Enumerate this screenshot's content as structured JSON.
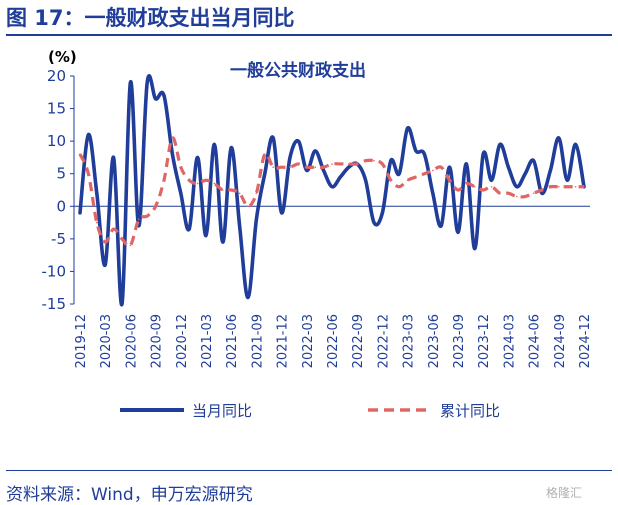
{
  "figure_title": "图 17：一般财政支出当月同比",
  "source": "资料来源：Wind，申万宏源研究",
  "watermark": "格隆汇",
  "colors": {
    "title": "#1f3d99",
    "monthly": "#1f3d99",
    "cumulative": "#e06666"
  },
  "chart_data": {
    "type": "line",
    "title": "一般公共财政支出",
    "ylabel": "(%)",
    "xlabel": "",
    "ylim": [
      -15,
      20
    ],
    "yticks": [
      -15,
      -10,
      -5,
      0,
      5,
      10,
      15,
      20
    ],
    "x_tick_labels": [
      "2019-12",
      "2020-03",
      "2020-06",
      "2020-09",
      "2020-12",
      "2021-03",
      "2021-06",
      "2021-09",
      "2021-12",
      "2022-03",
      "2022-06",
      "2022-09",
      "2022-12",
      "2023-03",
      "2023-06",
      "2023-09",
      "2023-12",
      "2024-03",
      "2024-06",
      "2024-09",
      "2024-12"
    ],
    "x": [
      "2019-12",
      "2020-01",
      "2020-02",
      "2020-03",
      "2020-04",
      "2020-05",
      "2020-06",
      "2020-07",
      "2020-08",
      "2020-09",
      "2020-10",
      "2020-11",
      "2020-12",
      "2021-01",
      "2021-02",
      "2021-03",
      "2021-04",
      "2021-05",
      "2021-06",
      "2021-07",
      "2021-08",
      "2021-09",
      "2021-10",
      "2021-11",
      "2021-12",
      "2022-01",
      "2022-02",
      "2022-03",
      "2022-04",
      "2022-05",
      "2022-06",
      "2022-07",
      "2022-08",
      "2022-09",
      "2022-10",
      "2022-11",
      "2022-12",
      "2023-01",
      "2023-02",
      "2023-03",
      "2023-04",
      "2023-05",
      "2023-06",
      "2023-07",
      "2023-08",
      "2023-09",
      "2023-10",
      "2023-11",
      "2023-12",
      "2024-01",
      "2024-02",
      "2024-03",
      "2024-04",
      "2024-05",
      "2024-06",
      "2024-07",
      "2024-08",
      "2024-09",
      "2024-10",
      "2024-11",
      "2024-12"
    ],
    "series": [
      {
        "name": "当月同比",
        "style": "solid",
        "color": "#1f3d99",
        "values": [
          -1,
          11,
          2,
          -9,
          7.5,
          -15,
          19,
          -3,
          19,
          16.5,
          17,
          8,
          2,
          -3.5,
          7.5,
          -4.5,
          9.5,
          -5.5,
          9,
          -3,
          -14,
          -2,
          5,
          10.5,
          -1,
          7.5,
          10,
          5.5,
          8.5,
          5.5,
          3,
          4.5,
          6,
          6.5,
          4,
          -2.5,
          -1,
          7,
          5,
          12,
          8.5,
          8,
          2,
          -3,
          6,
          -4,
          6.5,
          -6.5,
          8,
          4,
          9.5,
          6,
          3,
          5,
          7,
          2,
          5.5,
          10.5,
          4,
          9.5,
          3
        ]
      },
      {
        "name": "累计同比",
        "style": "dashed",
        "color": "#e06666",
        "values": [
          8,
          5,
          -2.5,
          -5.5,
          -3.5,
          -5,
          -6,
          -2,
          -1.5,
          0,
          4,
          10.5,
          6,
          4,
          3.5,
          4,
          3.5,
          2.5,
          2.5,
          2,
          0,
          2,
          8,
          6,
          6,
          6,
          6.5,
          6,
          6,
          6,
          6.5,
          6.5,
          6.5,
          6.5,
          7,
          7,
          6.5,
          4,
          3,
          4,
          4.5,
          5,
          5.5,
          6,
          4,
          2.5,
          3.5,
          3,
          2.5,
          3,
          2,
          2,
          1.5,
          1.5,
          2,
          2.5,
          3,
          3,
          3,
          3,
          3
        ]
      }
    ],
    "legend": "bottom"
  }
}
